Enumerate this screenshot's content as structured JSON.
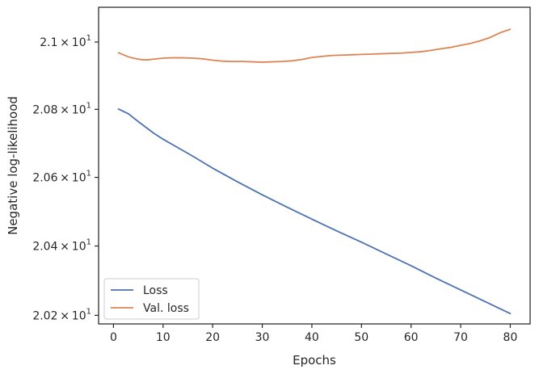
{
  "chart_data": {
    "type": "line",
    "xlabel": "Epochs",
    "ylabel": "Negative log-likelihood",
    "xlim": [
      -3,
      84
    ],
    "ylim": [
      20.1754,
      21.104
    ],
    "y_scale": "log",
    "grid": false,
    "legend_position": "lower-left",
    "x_ticks": [
      0,
      10,
      20,
      30,
      40,
      50,
      60,
      70,
      80
    ],
    "x_tick_labels": [
      "0",
      "10",
      "20",
      "30",
      "40",
      "50",
      "60",
      "70",
      "80"
    ],
    "y_ticks": [
      {
        "value": 20.2,
        "mantissa": "2.02",
        "base": "10",
        "exp": "1"
      },
      {
        "value": 20.4,
        "mantissa": "2.04",
        "base": "10",
        "exp": "1"
      },
      {
        "value": 20.6,
        "mantissa": "2.06",
        "base": "10",
        "exp": "1"
      },
      {
        "value": 20.8,
        "mantissa": "2.08",
        "base": "10",
        "exp": "1"
      },
      {
        "value": 21.0,
        "mantissa": "2.1",
        "base": "10",
        "exp": "1"
      }
    ],
    "series": [
      {
        "name": "Loss",
        "color": "#4c72b0",
        "x": [
          1,
          3,
          5,
          8,
          10,
          13,
          16,
          20,
          25,
          30,
          35,
          40,
          45,
          50,
          55,
          60,
          65,
          70,
          75,
          80
        ],
        "y": [
          20.801,
          20.787,
          20.764,
          20.731,
          20.712,
          20.687,
          20.662,
          20.627,
          20.587,
          20.549,
          20.513,
          20.478,
          20.444,
          20.411,
          20.377,
          20.343,
          20.307,
          20.273,
          20.239,
          20.205
        ]
      },
      {
        "name": "Val. loss",
        "color": "#dd8452",
        "x": [
          1,
          2,
          3,
          4,
          5,
          6,
          7,
          8,
          10,
          12,
          14,
          16,
          18,
          20,
          22,
          24,
          26,
          28,
          30,
          32,
          34,
          36,
          38,
          40,
          42,
          44,
          46,
          48,
          50,
          52,
          54,
          56,
          58,
          60,
          62,
          64,
          66,
          68,
          70,
          72,
          74,
          76,
          78,
          80
        ],
        "y": [
          20.968,
          20.962,
          20.956,
          20.952,
          20.949,
          20.947,
          20.947,
          20.949,
          20.952,
          20.953,
          20.953,
          20.952,
          20.95,
          20.946,
          20.943,
          20.942,
          20.942,
          20.941,
          20.94,
          20.941,
          20.942,
          20.944,
          20.948,
          20.954,
          20.957,
          20.96,
          20.961,
          20.962,
          20.963,
          20.964,
          20.965,
          20.966,
          20.967,
          20.969,
          20.971,
          20.975,
          20.98,
          20.984,
          20.99,
          20.996,
          21.004,
          21.014,
          21.028,
          21.038
        ]
      }
    ]
  }
}
